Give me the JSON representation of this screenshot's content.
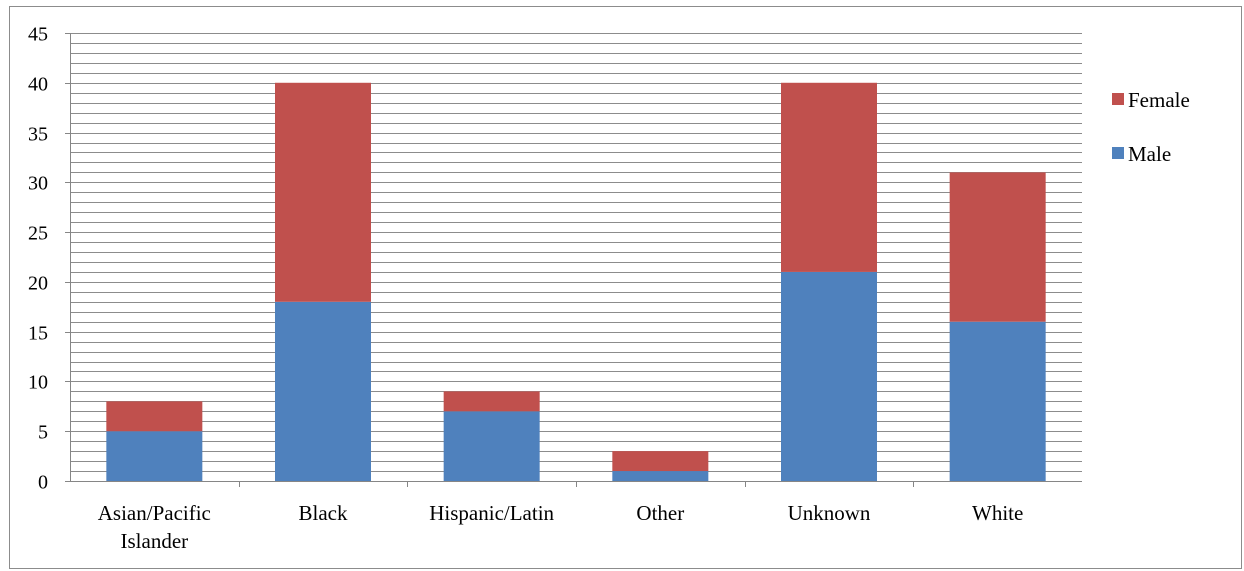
{
  "chart_data": {
    "type": "bar",
    "stacked": true,
    "categories": [
      [
        "Asian/Pacific",
        "Islander"
      ],
      [
        "Black"
      ],
      [
        "Hispanic/Latin"
      ],
      [
        "Other"
      ],
      [
        "Unknown"
      ],
      [
        "White"
      ]
    ],
    "series": [
      {
        "name": "Male",
        "color": "#4F81BD",
        "values": [
          5,
          18,
          7,
          1,
          21,
          16
        ]
      },
      {
        "name": "Female",
        "color": "#C0504D",
        "values": [
          3,
          22,
          2,
          2,
          19,
          15
        ]
      }
    ],
    "ylim": [
      0,
      45
    ],
    "y_major_step": 5,
    "y_minor_step": 1,
    "y_tick_labels": [
      "0",
      "5",
      "10",
      "15",
      "20",
      "25",
      "30",
      "35",
      "40",
      "45"
    ],
    "grid": true,
    "legend_position": "right",
    "legend_order": [
      "Female",
      "Male"
    ],
    "title": "",
    "xlabel": "",
    "ylabel": ""
  }
}
